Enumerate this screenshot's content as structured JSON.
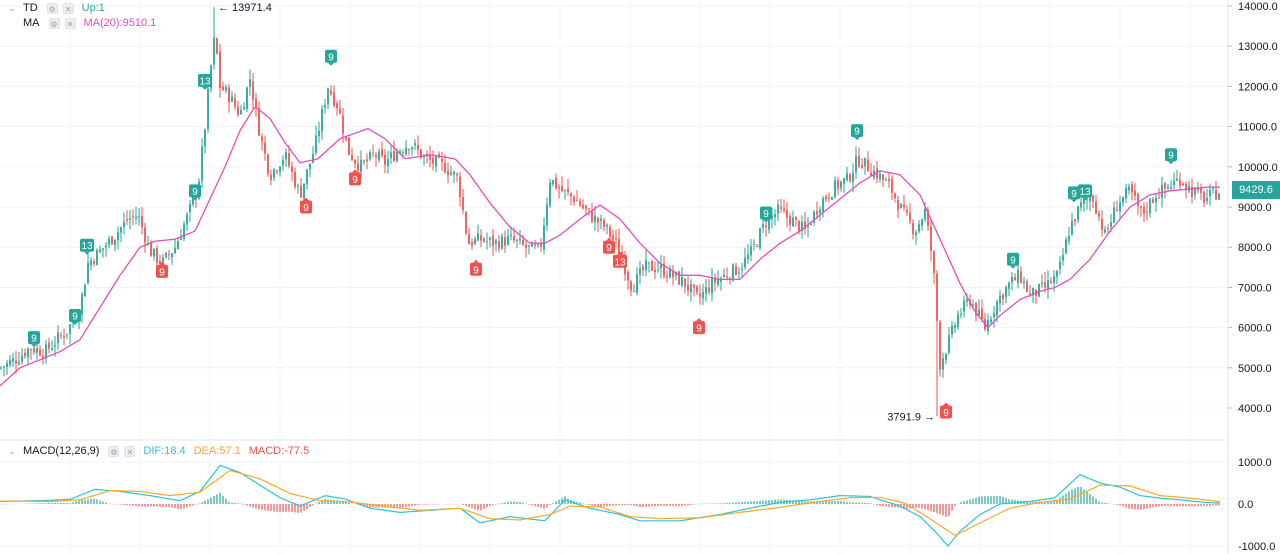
{
  "legend": {
    "td": {
      "title": "TD",
      "value": "Up:1",
      "color": "#26a69a"
    },
    "ma": {
      "title": "MA",
      "value": "MA(20):9510.1",
      "color": "#e84cbd"
    },
    "macd": {
      "title": "MACD(12,26,9)",
      "dif": "DIF:18.4",
      "dea": "DEA:57.1",
      "macd": "MACD:-77.5",
      "dif_color": "#26c6da",
      "dea_color": "#ffa726",
      "macd_color": "#ef5350"
    }
  },
  "price_axis": {
    "ticks": [
      "14000.0",
      "13000.0",
      "12000.0",
      "11000.0",
      "10000.0",
      "9000.0",
      "8000.0",
      "7000.0",
      "6000.0",
      "5000.0",
      "4000.0"
    ]
  },
  "macd_axis": {
    "ticks": [
      "1000.0",
      "0.0",
      "-1000.0"
    ]
  },
  "last_price": "9429.6",
  "annotations": {
    "high": "13971.4",
    "low": "3791.9"
  },
  "chart_data": {
    "type": "candlestick",
    "price_range": [
      3300,
      14150
    ],
    "macd_range": [
      -1080,
      1080
    ],
    "colors": {
      "up": "#26a69a",
      "down": "#ef5350",
      "ma": "#e84cbd",
      "dif": "#26c6da",
      "dea": "#ffa726"
    },
    "price_keypoints": [
      [
        0,
        5000
      ],
      [
        15,
        5200
      ],
      [
        30,
        5500
      ],
      [
        45,
        5400
      ],
      [
        55,
        5650
      ],
      [
        68,
        5950
      ],
      [
        80,
        6500
      ],
      [
        88,
        7600
      ],
      [
        100,
        7900
      ],
      [
        115,
        8300
      ],
      [
        128,
        8700
      ],
      [
        138,
        8800
      ],
      [
        150,
        7900
      ],
      [
        162,
        7600
      ],
      [
        175,
        8000
      ],
      [
        188,
        8800
      ],
      [
        198,
        9500
      ],
      [
        205,
        11000
      ],
      [
        210,
        12300
      ],
      [
        215,
        13300
      ],
      [
        220,
        12000
      ],
      [
        228,
        11800
      ],
      [
        240,
        11300
      ],
      [
        250,
        12200
      ],
      [
        260,
        10800
      ],
      [
        270,
        9800
      ],
      [
        285,
        10300
      ],
      [
        300,
        9300
      ],
      [
        315,
        10500
      ],
      [
        328,
        12000
      ],
      [
        338,
        11500
      ],
      [
        348,
        10400
      ],
      [
        360,
        10000
      ],
      [
        375,
        10300
      ],
      [
        385,
        10100
      ],
      [
        398,
        10400
      ],
      [
        410,
        10600
      ],
      [
        425,
        10200
      ],
      [
        445,
        10000
      ],
      [
        458,
        9700
      ],
      [
        468,
        8100
      ],
      [
        480,
        8200
      ],
      [
        495,
        8100
      ],
      [
        510,
        8200
      ],
      [
        525,
        8000
      ],
      [
        540,
        7900
      ],
      [
        550,
        9700
      ],
      [
        562,
        9400
      ],
      [
        575,
        9200
      ],
      [
        590,
        8800
      ],
      [
        605,
        8500
      ],
      [
        618,
        8000
      ],
      [
        632,
        7000
      ],
      [
        645,
        7500
      ],
      [
        658,
        7500
      ],
      [
        672,
        7300
      ],
      [
        685,
        7100
      ],
      [
        698,
        6700
      ],
      [
        712,
        7100
      ],
      [
        725,
        7300
      ],
      [
        740,
        7500
      ],
      [
        752,
        7900
      ],
      [
        765,
        8600
      ],
      [
        778,
        8900
      ],
      [
        790,
        8700
      ],
      [
        805,
        8400
      ],
      [
        820,
        9100
      ],
      [
        835,
        9500
      ],
      [
        848,
        9700
      ],
      [
        858,
        10200
      ],
      [
        868,
        10000
      ],
      [
        878,
        9800
      ],
      [
        890,
        9500
      ],
      [
        902,
        8900
      ],
      [
        915,
        8400
      ],
      [
        925,
        8900
      ],
      [
        933,
        7600
      ],
      [
        940,
        5100
      ],
      [
        948,
        5600
      ],
      [
        958,
        6300
      ],
      [
        970,
        6700
      ],
      [
        985,
        6000
      ],
      [
        998,
        6700
      ],
      [
        1010,
        7100
      ],
      [
        1020,
        7300
      ],
      [
        1030,
        6800
      ],
      [
        1045,
        7000
      ],
      [
        1058,
        7300
      ],
      [
        1070,
        8500
      ],
      [
        1080,
        9000
      ],
      [
        1092,
        9300
      ],
      [
        1105,
        8300
      ],
      [
        1118,
        9100
      ],
      [
        1130,
        9400
      ],
      [
        1142,
        8800
      ],
      [
        1155,
        9300
      ],
      [
        1168,
        9500
      ],
      [
        1180,
        9700
      ],
      [
        1192,
        9400
      ],
      [
        1205,
        9200
      ],
      [
        1220,
        9400
      ]
    ],
    "ma_keypoints": [
      [
        0,
        4550
      ],
      [
        20,
        5000
      ],
      [
        40,
        5200
      ],
      [
        60,
        5400
      ],
      [
        80,
        5700
      ],
      [
        100,
        6500
      ],
      [
        120,
        7300
      ],
      [
        140,
        8000
      ],
      [
        155,
        8150
      ],
      [
        175,
        8200
      ],
      [
        195,
        8400
      ],
      [
        210,
        9200
      ],
      [
        225,
        10000
      ],
      [
        240,
        10900
      ],
      [
        255,
        11500
      ],
      [
        270,
        11200
      ],
      [
        285,
        10600
      ],
      [
        300,
        10100
      ],
      [
        318,
        10200
      ],
      [
        340,
        10700
      ],
      [
        368,
        10950
      ],
      [
        385,
        10700
      ],
      [
        405,
        10200
      ],
      [
        430,
        10300
      ],
      [
        455,
        10200
      ],
      [
        470,
        9800
      ],
      [
        490,
        9100
      ],
      [
        510,
        8500
      ],
      [
        530,
        8100
      ],
      [
        545,
        8100
      ],
      [
        560,
        8300
      ],
      [
        580,
        8700
      ],
      [
        600,
        9050
      ],
      [
        620,
        8700
      ],
      [
        640,
        8100
      ],
      [
        660,
        7600
      ],
      [
        680,
        7300
      ],
      [
        700,
        7300
      ],
      [
        720,
        7200
      ],
      [
        740,
        7200
      ],
      [
        760,
        7700
      ],
      [
        780,
        8100
      ],
      [
        800,
        8400
      ],
      [
        820,
        8800
      ],
      [
        840,
        9200
      ],
      [
        860,
        9600
      ],
      [
        880,
        9900
      ],
      [
        900,
        9800
      ],
      [
        920,
        9300
      ],
      [
        940,
        8200
      ],
      [
        960,
        7100
      ],
      [
        975,
        6400
      ],
      [
        988,
        6000
      ],
      [
        1000,
        6300
      ],
      [
        1020,
        6700
      ],
      [
        1040,
        6900
      ],
      [
        1055,
        7000
      ],
      [
        1070,
        7200
      ],
      [
        1090,
        7700
      ],
      [
        1110,
        8400
      ],
      [
        1130,
        9000
      ],
      [
        1150,
        9300
      ],
      [
        1170,
        9400
      ],
      [
        1190,
        9450
      ],
      [
        1210,
        9500
      ],
      [
        1220,
        9490
      ]
    ],
    "td_markers": [
      {
        "x": 34,
        "price": 5750,
        "label": "9",
        "dir": "up"
      },
      {
        "x": 75,
        "price": 6300,
        "label": "9",
        "dir": "up"
      },
      {
        "x": 87,
        "price": 8050,
        "label": "13",
        "dir": "up"
      },
      {
        "x": 162,
        "price": 7400,
        "label": "9",
        "dir": "down"
      },
      {
        "x": 195,
        "price": 9400,
        "label": "9",
        "dir": "up"
      },
      {
        "x": 205,
        "price": 12150,
        "label": "13",
        "dir": "up"
      },
      {
        "x": 306,
        "price": 9000,
        "label": "9",
        "dir": "down"
      },
      {
        "x": 331,
        "price": 12750,
        "label": "9",
        "dir": "up"
      },
      {
        "x": 355,
        "price": 9700,
        "label": "9",
        "dir": "down"
      },
      {
        "x": 476,
        "price": 7450,
        "label": "9",
        "dir": "down"
      },
      {
        "x": 609,
        "price": 8000,
        "label": "9",
        "dir": "down"
      },
      {
        "x": 620,
        "price": 7650,
        "label": "13",
        "dir": "down"
      },
      {
        "x": 699,
        "price": 6000,
        "label": "9",
        "dir": "down"
      },
      {
        "x": 766,
        "price": 8850,
        "label": "9",
        "dir": "up"
      },
      {
        "x": 857,
        "price": 10900,
        "label": "9",
        "dir": "up"
      },
      {
        "x": 946,
        "price": 3900,
        "label": "9",
        "dir": "down"
      },
      {
        "x": 1013,
        "price": 7700,
        "label": "9",
        "dir": "up"
      },
      {
        "x": 1074,
        "price": 9350,
        "label": "9",
        "dir": "up"
      },
      {
        "x": 1085,
        "price": 9400,
        "label": "13",
        "dir": "up"
      },
      {
        "x": 1171,
        "price": 10300,
        "label": "9",
        "dir": "up"
      }
    ],
    "dif_keypoints": [
      [
        0,
        60
      ],
      [
        40,
        80
      ],
      [
        70,
        110
      ],
      [
        95,
        350
      ],
      [
        120,
        300
      ],
      [
        150,
        200
      ],
      [
        180,
        80
      ],
      [
        200,
        300
      ],
      [
        220,
        920
      ],
      [
        240,
        750
      ],
      [
        260,
        450
      ],
      [
        280,
        150
      ],
      [
        300,
        -50
      ],
      [
        325,
        200
      ],
      [
        345,
        120
      ],
      [
        370,
        -100
      ],
      [
        400,
        -200
      ],
      [
        430,
        -150
      ],
      [
        460,
        -100
      ],
      [
        480,
        -450
      ],
      [
        510,
        -300
      ],
      [
        545,
        -400
      ],
      [
        565,
        100
      ],
      [
        590,
        -100
      ],
      [
        620,
        -250
      ],
      [
        640,
        -400
      ],
      [
        680,
        -400
      ],
      [
        720,
        -250
      ],
      [
        750,
        -100
      ],
      [
        780,
        40
      ],
      [
        810,
        100
      ],
      [
        840,
        200
      ],
      [
        870,
        180
      ],
      [
        900,
        -50
      ],
      [
        920,
        -300
      ],
      [
        935,
        -650
      ],
      [
        948,
        -1000
      ],
      [
        960,
        -650
      ],
      [
        980,
        -250
      ],
      [
        1000,
        0
      ],
      [
        1030,
        60
      ],
      [
        1055,
        150
      ],
      [
        1080,
        700
      ],
      [
        1100,
        500
      ],
      [
        1120,
        400
      ],
      [
        1140,
        200
      ],
      [
        1160,
        140
      ],
      [
        1180,
        100
      ],
      [
        1200,
        50
      ],
      [
        1220,
        20
      ]
    ],
    "dea_keypoints": [
      [
        0,
        70
      ],
      [
        50,
        60
      ],
      [
        80,
        100
      ],
      [
        110,
        320
      ],
      [
        140,
        300
      ],
      [
        170,
        200
      ],
      [
        200,
        280
      ],
      [
        230,
        800
      ],
      [
        260,
        600
      ],
      [
        290,
        250
      ],
      [
        320,
        80
      ],
      [
        350,
        50
      ],
      [
        380,
        -40
      ],
      [
        420,
        -150
      ],
      [
        460,
        -100
      ],
      [
        490,
        -350
      ],
      [
        520,
        -380
      ],
      [
        550,
        -250
      ],
      [
        570,
        -50
      ],
      [
        600,
        -70
      ],
      [
        630,
        -300
      ],
      [
        660,
        -350
      ],
      [
        700,
        -330
      ],
      [
        740,
        -200
      ],
      [
        780,
        -80
      ],
      [
        810,
        30
      ],
      [
        850,
        150
      ],
      [
        880,
        160
      ],
      [
        905,
        20
      ],
      [
        930,
        -350
      ],
      [
        955,
        -750
      ],
      [
        980,
        -450
      ],
      [
        1010,
        -100
      ],
      [
        1040,
        40
      ],
      [
        1070,
        120
      ],
      [
        1100,
        450
      ],
      [
        1130,
        430
      ],
      [
        1160,
        200
      ],
      [
        1190,
        140
      ],
      [
        1220,
        57
      ]
    ],
    "high": {
      "x": 215,
      "price": 13971.4
    },
    "low": {
      "x": 938,
      "price": 3791.9
    }
  }
}
